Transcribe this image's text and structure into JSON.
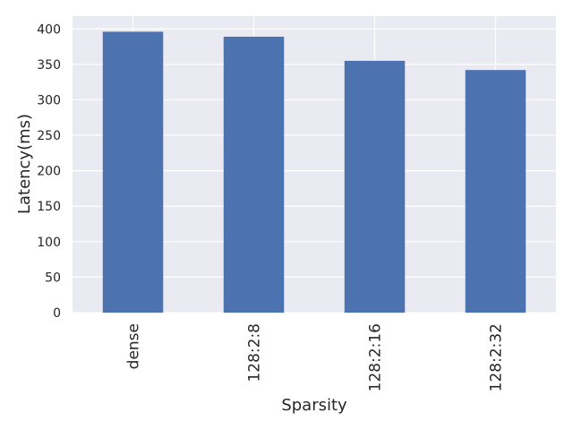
{
  "chart_data": {
    "type": "bar",
    "title": "",
    "xlabel": "Sparsity",
    "ylabel": "Latency(ms)",
    "categories": [
      "dense",
      "128:2:8",
      "128:2:16",
      "128:2:32"
    ],
    "values": [
      396,
      389,
      355,
      342
    ],
    "ylim": [
      0,
      418
    ],
    "yticks": [
      0,
      50,
      100,
      150,
      200,
      250,
      300,
      350,
      400
    ],
    "grid": true,
    "legend": "none",
    "colors": {
      "bar": "#4c72b0",
      "background": "#eaeaf2",
      "grid": "#ffffff",
      "text": "#262626"
    }
  }
}
